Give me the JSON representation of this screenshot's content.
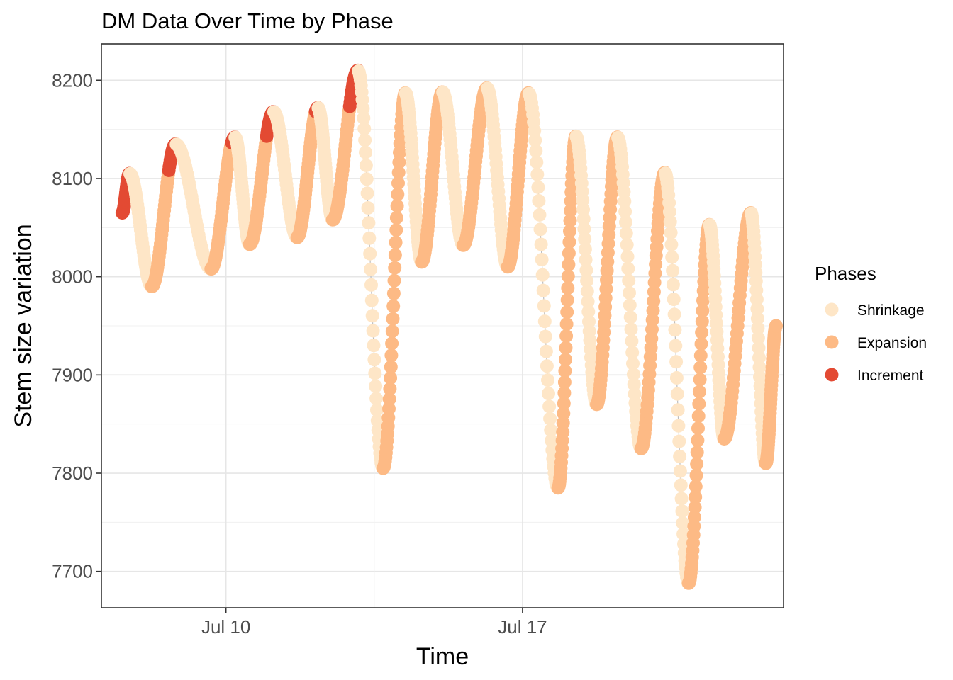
{
  "chart_data": {
    "type": "scatter",
    "title": "DM Data Over Time by Phase",
    "xlabel": "Time",
    "ylabel": "Stem size variation",
    "x_unit": "days",
    "xlim": [
      5.8,
      28.8
    ],
    "ylim": [
      7663,
      8237
    ],
    "x_ticks": [
      {
        "value": 10,
        "label": "Jul 10"
      },
      {
        "value": 20,
        "label": "Jul 17"
      }
    ],
    "y_ticks": [
      7700,
      7800,
      7900,
      8000,
      8100,
      8200
    ],
    "grid": true,
    "legend": {
      "title": "Phases",
      "position": "right",
      "entries": [
        {
          "name": "Shrinkage",
          "color": "#FEE6C7"
        },
        {
          "name": "Expansion",
          "color": "#FDBA85"
        },
        {
          "name": "Increment",
          "color": "#E34A33"
        }
      ]
    },
    "colors": {
      "Shrinkage": "#FEE6C7",
      "Expansion": "#FDBA85",
      "Increment": "#E34A33"
    },
    "cycles": [
      {
        "min_x": 6.5,
        "min_y": 8065,
        "max_x": 6.75,
        "max_y": 8105,
        "ref_max": 8065
      },
      {
        "min_x": 7.5,
        "min_y": 7990,
        "max_x": 8.3,
        "max_y": 8135,
        "ref_max": 8105
      },
      {
        "min_x": 9.5,
        "min_y": 8008,
        "max_x": 10.3,
        "max_y": 8142,
        "ref_max": 8135
      },
      {
        "min_x": 10.8,
        "min_y": 8033,
        "max_x": 11.6,
        "max_y": 8168,
        "ref_max": 8142
      },
      {
        "min_x": 12.4,
        "min_y": 8040,
        "max_x": 13.1,
        "max_y": 8172,
        "ref_max": 8168
      },
      {
        "min_x": 13.6,
        "min_y": 8058,
        "max_x": 14.45,
        "max_y": 8210,
        "ref_max": 8172
      },
      {
        "min_x": 15.3,
        "min_y": 7805,
        "max_x": 16.05,
        "max_y": 8187,
        "ref_max": 8210
      },
      {
        "min_x": 16.6,
        "min_y": 8015,
        "max_x": 17.3,
        "max_y": 8188,
        "ref_max": 8210
      },
      {
        "min_x": 18.0,
        "min_y": 8032,
        "max_x": 18.8,
        "max_y": 8192,
        "ref_max": 8210
      },
      {
        "min_x": 19.5,
        "min_y": 8010,
        "max_x": 20.2,
        "max_y": 8187,
        "ref_max": 8210
      },
      {
        "min_x": 21.2,
        "min_y": 7785,
        "max_x": 21.8,
        "max_y": 8143,
        "ref_max": 8210
      },
      {
        "min_x": 22.5,
        "min_y": 7870,
        "max_x": 23.2,
        "max_y": 8142,
        "ref_max": 8210
      },
      {
        "min_x": 24.0,
        "min_y": 7825,
        "max_x": 24.8,
        "max_y": 8106,
        "ref_max": 8210
      },
      {
        "min_x": 25.6,
        "min_y": 7688,
        "max_x": 26.3,
        "max_y": 8053,
        "ref_max": 8210
      },
      {
        "min_x": 26.8,
        "min_y": 7835,
        "max_x": 27.7,
        "max_y": 8065,
        "ref_max": 8210
      },
      {
        "min_x": 28.2,
        "min_y": 7810,
        "max_x": 28.55,
        "max_y": 7950,
        "ref_max": 8210
      }
    ],
    "end_x": 28.55
  }
}
